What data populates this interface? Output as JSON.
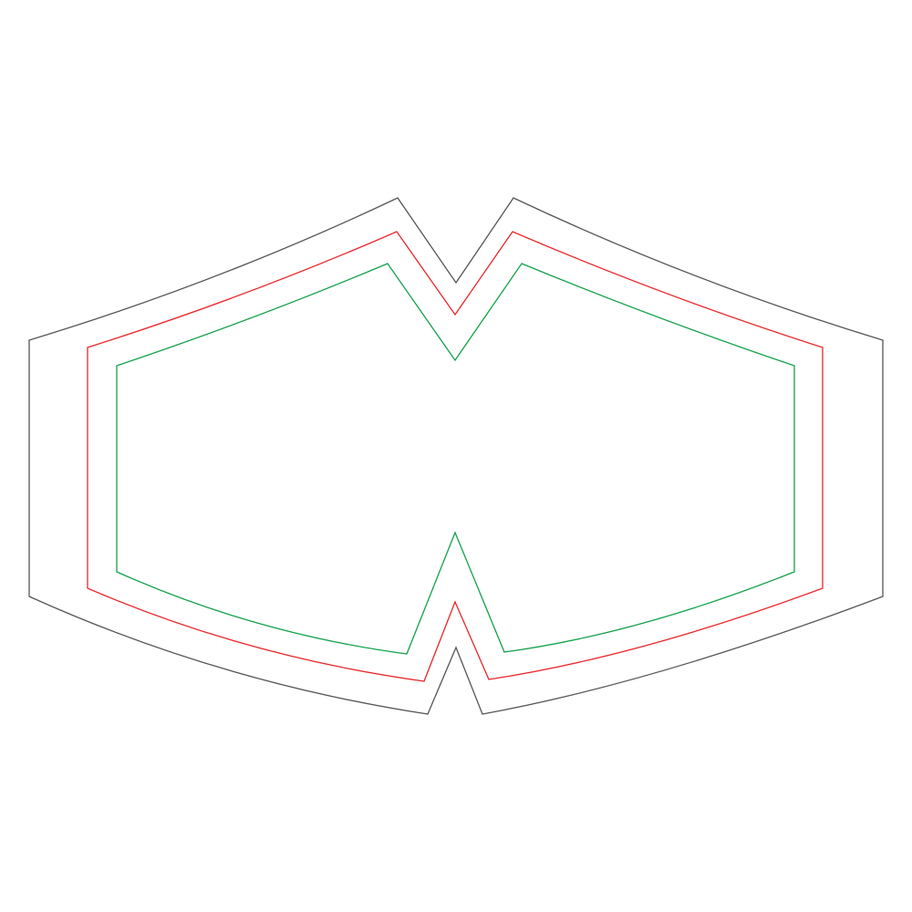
{
  "template": {
    "background_color": "#ffffff",
    "outlines": [
      {
        "id": "outer-cut-line",
        "color": "#555555"
      },
      {
        "id": "middle-bleed-line",
        "color": "#e8272b"
      },
      {
        "id": "inner-safe-line",
        "color": "#12a14a"
      }
    ]
  }
}
